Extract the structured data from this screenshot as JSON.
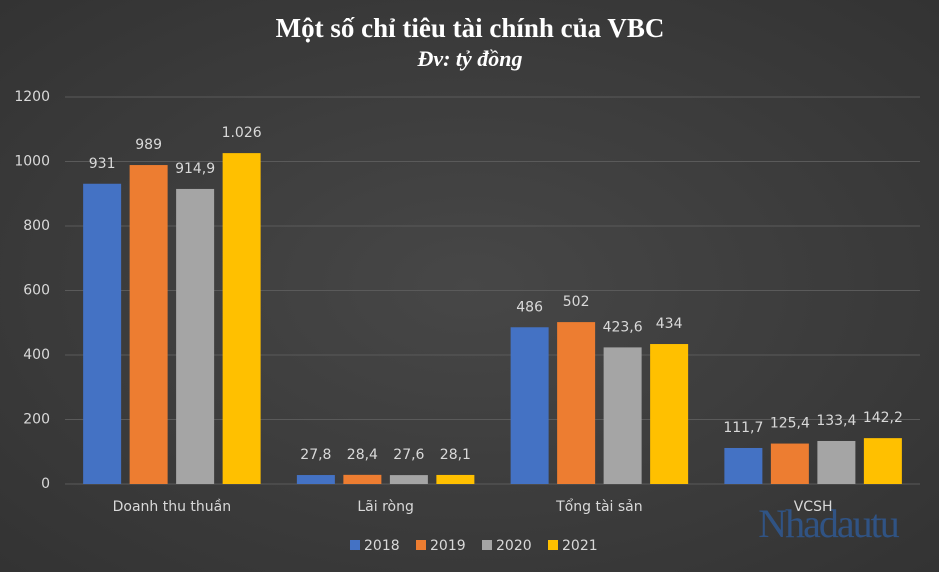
{
  "chart_data": {
    "type": "bar",
    "title": "Một số chỉ tiêu tài chính của VBC",
    "subtitle": "Đv: tỷ đồng",
    "categories": [
      "Doanh thu thuần",
      "Lãi ròng",
      "Tổng tài sản",
      "VCSH"
    ],
    "series": [
      {
        "name": "2018",
        "color": "#4472c4",
        "values": [
          931,
          27.8,
          486,
          111.7
        ],
        "value_labels": [
          "931",
          "27,8",
          "486",
          "111,7"
        ]
      },
      {
        "name": "2019",
        "color": "#ed7d31",
        "values": [
          989,
          28.4,
          502,
          125.4
        ],
        "value_labels": [
          "989",
          "28,4",
          "502",
          "125,4"
        ]
      },
      {
        "name": "2020",
        "color": "#a5a5a5",
        "values": [
          914.9,
          27.6,
          423.6,
          133.4
        ],
        "value_labels": [
          "914,9",
          "27,6",
          "423,6",
          "133,4"
        ]
      },
      {
        "name": "2021",
        "color": "#ffc000",
        "values": [
          1026,
          28.1,
          434,
          142.2
        ],
        "value_labels": [
          "1.026",
          "28,1",
          "434",
          "142,2"
        ]
      }
    ],
    "ylim": [
      0,
      1200
    ],
    "yticks": [
      0,
      200,
      400,
      600,
      800,
      1000,
      1200
    ],
    "grid": true,
    "legend": "bottom",
    "watermark": "Nhadautu"
  }
}
